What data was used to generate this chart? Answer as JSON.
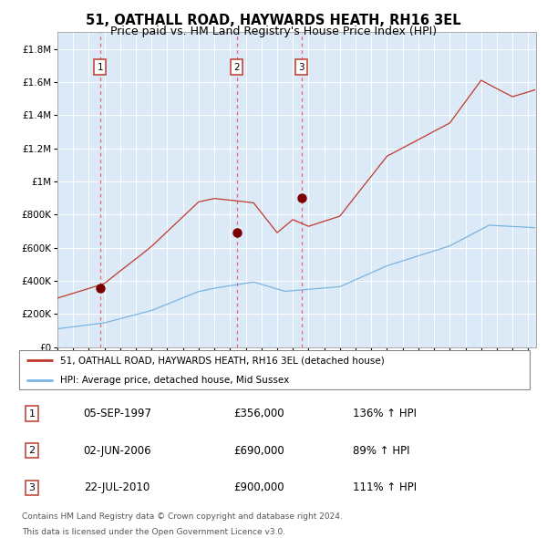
{
  "title": "51, OATHALL ROAD, HAYWARDS HEATH, RH16 3EL",
  "subtitle": "Price paid vs. HM Land Registry's House Price Index (HPI)",
  "legend_line1": "51, OATHALL ROAD, HAYWARDS HEATH, RH16 3EL (detached house)",
  "legend_line2": "HPI: Average price, detached house, Mid Sussex",
  "footnote1": "Contains HM Land Registry data © Crown copyright and database right 2024.",
  "footnote2": "This data is licensed under the Open Government Licence v3.0.",
  "sales": [
    {
      "label": "1",
      "date_num": 1997.71,
      "price": 356000,
      "text": "05-SEP-1997",
      "amount": "£356,000",
      "hpi_pct": "136% ↑ HPI"
    },
    {
      "label": "2",
      "date_num": 2006.42,
      "price": 690000,
      "text": "02-JUN-2006",
      "amount": "£690,000",
      "hpi_pct": "89% ↑ HPI"
    },
    {
      "label": "3",
      "date_num": 2010.55,
      "price": 900000,
      "text": "22-JUL-2010",
      "amount": "£900,000",
      "hpi_pct": "111% ↑ HPI"
    }
  ],
  "hpi_color": "#7ab4e0",
  "price_color": "#c0392b",
  "dashed_color": "#e05555",
  "bg_color": "#dce9f7",
  "grid_color": "#ffffff",
  "ylim_max": 1900000,
  "xlim_start": 1995.0,
  "xlim_end": 2025.5,
  "yticks": [
    0,
    200000,
    400000,
    600000,
    800000,
    1000000,
    1200000,
    1400000,
    1600000,
    1800000
  ]
}
